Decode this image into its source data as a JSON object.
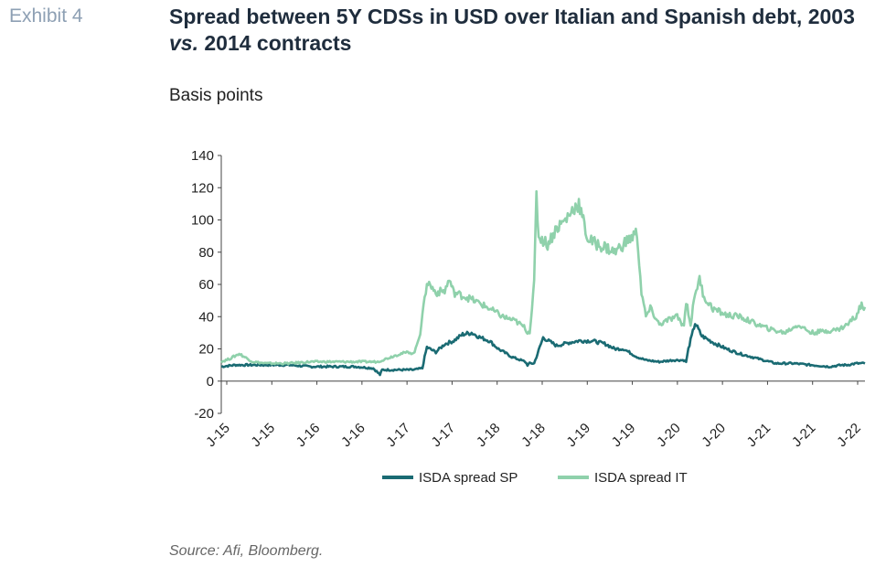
{
  "header": {
    "exhibit": "Exhibit 4",
    "title_part1": "Spread between 5Y CDSs in USD over Italian and Spanish debt, 2003 ",
    "title_italic": "vs.",
    "title_part2": " 2014 contracts"
  },
  "footer": {
    "source": "Source: Afi, Bloomberg."
  },
  "chart_data": {
    "type": "line",
    "title": "Spread between 5Y CDSs in USD over Italian and Spanish debt, 2003 vs. 2014 contracts",
    "ylabel": "Basis points",
    "xlabel": "",
    "ylim": [
      -20,
      140
    ],
    "yticks": [
      -20,
      0,
      20,
      40,
      60,
      80,
      100,
      120,
      140
    ],
    "xlim": [
      0,
      14.4
    ],
    "xticks": [
      "J-15",
      "J-15",
      "J-16",
      "J-16",
      "J-17",
      "J-17",
      "J-18",
      "J-18",
      "J-19",
      "J-19",
      "J-20",
      "J-20",
      "J-21",
      "J-21",
      "J-22"
    ],
    "grid": false,
    "legend": "bottom",
    "series": [
      {
        "name": "ISDA spread SP",
        "color": "#1a6b73",
        "x": [
          0,
          0.3,
          0.6,
          1.0,
          1.5,
          2.0,
          2.5,
          3.0,
          3.4,
          3.55,
          3.6,
          3.8,
          4.0,
          4.3,
          4.5,
          4.55,
          4.6,
          4.8,
          5.0,
          5.2,
          5.4,
          5.6,
          5.8,
          6.0,
          6.2,
          6.5,
          6.8,
          6.85,
          6.9,
          7.0,
          7.2,
          7.5,
          7.8,
          8.0,
          8.3,
          8.6,
          8.8,
          9.0,
          9.3,
          9.5,
          9.8,
          10.1,
          10.35,
          10.4,
          10.45,
          10.6,
          10.75,
          11.0,
          11.3,
          11.6,
          12.0,
          12.4,
          12.8,
          13.2,
          13.6,
          13.9,
          14.0,
          14.2,
          14.4
        ],
        "values": [
          9,
          10,
          10,
          10,
          10,
          9,
          9,
          9,
          8,
          4,
          7,
          7,
          7,
          7,
          8,
          15,
          21,
          18,
          23,
          25,
          29,
          30,
          27,
          25,
          20,
          15,
          12,
          10,
          11,
          11,
          27,
          22,
          24,
          25,
          25,
          23,
          20,
          20,
          15,
          13,
          12,
          13,
          13,
          12,
          20,
          36,
          28,
          24,
          20,
          17,
          14,
          11,
          11,
          10,
          9,
          10,
          10,
          11,
          11
        ]
      },
      {
        "name": "ISDA spread IT",
        "color": "#8fd1ab",
        "x": [
          0,
          0.2,
          0.4,
          0.7,
          1.0,
          1.5,
          2.0,
          2.5,
          3.0,
          3.5,
          3.8,
          4.0,
          4.2,
          4.3,
          4.35,
          4.45,
          4.5,
          4.55,
          4.6,
          4.8,
          5.0,
          5.1,
          5.2,
          5.5,
          5.8,
          6.0,
          6.3,
          6.6,
          6.8,
          6.85,
          6.9,
          7.0,
          7.05,
          7.1,
          7.3,
          7.5,
          7.7,
          7.9,
          8.0,
          8.2,
          8.4,
          8.6,
          8.8,
          9.0,
          9.3,
          9.4,
          9.5,
          9.6,
          9.8,
          10.0,
          10.2,
          10.35,
          10.4,
          10.5,
          10.6,
          10.7,
          10.8,
          11.0,
          11.3,
          11.6,
          12.0,
          12.3,
          12.6,
          12.9,
          13.2,
          13.5,
          13.8,
          14.0,
          14.1,
          14.2,
          14.3,
          14.4
        ],
        "values": [
          12,
          14,
          17,
          12,
          11,
          11,
          12,
          12,
          12,
          12,
          15,
          17,
          18,
          17,
          20,
          30,
          42,
          50,
          62,
          55,
          56,
          63,
          55,
          52,
          48,
          45,
          40,
          37,
          33,
          30,
          31,
          60,
          115,
          90,
          85,
          95,
          100,
          108,
          110,
          88,
          85,
          83,
          80,
          85,
          92,
          55,
          40,
          45,
          35,
          38,
          40,
          34,
          50,
          35,
          55,
          63,
          52,
          45,
          41,
          40,
          35,
          32,
          30,
          35,
          30,
          31,
          32,
          35,
          38,
          40,
          47,
          46
        ]
      }
    ]
  }
}
